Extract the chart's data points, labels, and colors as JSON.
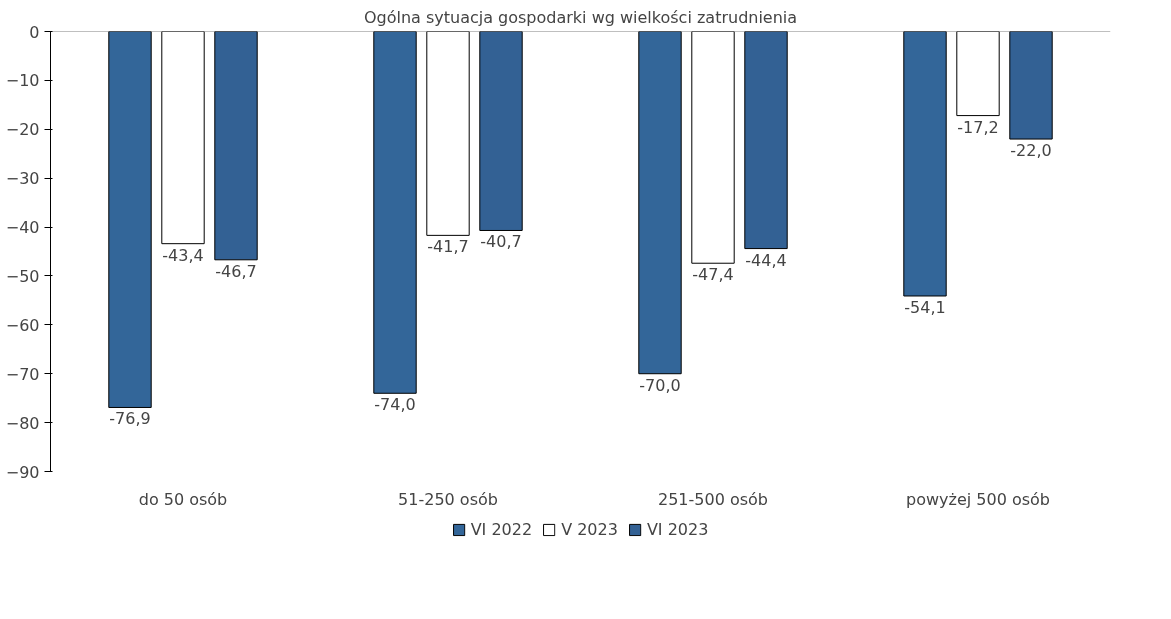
{
  "chart_data": {
    "type": "bar",
    "title": "Ogólna sytuacja gospodarki wg wielkości zatrudnienia",
    "categories": [
      "do 50 osób",
      "51-250 osób",
      "251-500 osób",
      "powyżej 500 osób"
    ],
    "series": [
      {
        "name": "VI 2022",
        "color": "#336699",
        "values": [
          -76.9,
          -74.0,
          -70.0,
          -54.1
        ],
        "value_labels": [
          "-76,9",
          "-74,0",
          "-70,0",
          "-54,1"
        ]
      },
      {
        "name": "V 2023",
        "color": "#ffffff",
        "values": [
          -43.4,
          -41.7,
          -47.4,
          -17.2
        ],
        "value_labels": [
          "-43,4",
          "-41,7",
          "-47,4",
          "-17,2"
        ]
      },
      {
        "name": "VI 2023",
        "color": "#336194",
        "values": [
          -46.7,
          -40.7,
          -44.4,
          -22.0
        ],
        "value_labels": [
          "-46,7",
          "-40,7",
          "-44,4",
          "-22,0"
        ]
      }
    ],
    "ylim": [
      -90,
      0
    ],
    "yticks": [
      0,
      -10,
      -20,
      -30,
      -40,
      -50,
      -60,
      -70,
      -80,
      -90
    ],
    "grid": false,
    "legend": "bottom"
  }
}
